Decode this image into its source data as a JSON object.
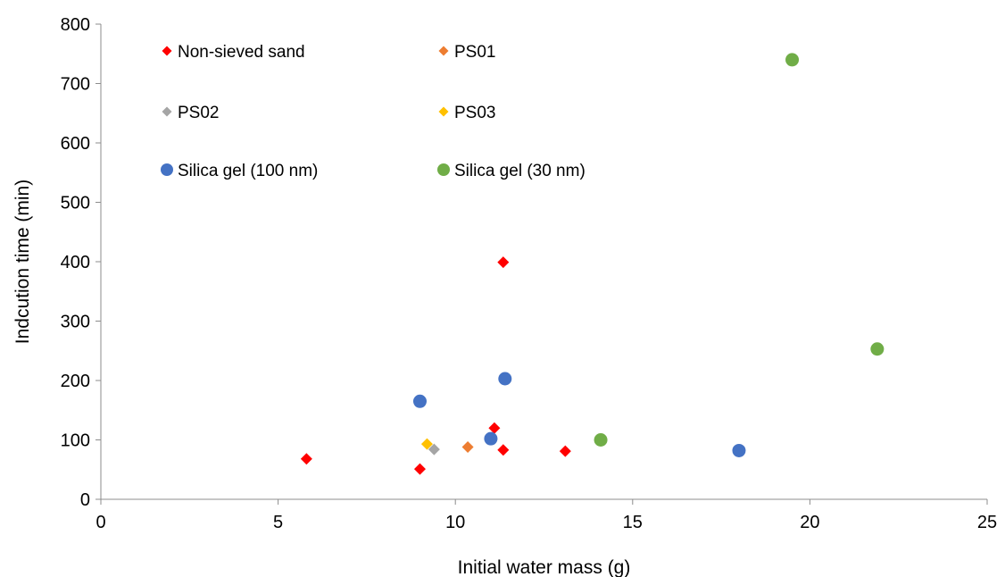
{
  "chart_data": {
    "type": "scatter",
    "title": "",
    "xlabel": "Initial water mass (g)",
    "ylabel": "Indcution time (min)",
    "xlim": [
      0,
      25
    ],
    "ylim": [
      0,
      800
    ],
    "x_ticks": [
      0,
      5,
      10,
      15,
      20,
      25
    ],
    "y_ticks": [
      0,
      100,
      200,
      300,
      400,
      500,
      600,
      700,
      800
    ],
    "grid": false,
    "legend_position": "inside top-left, two columns",
    "series": [
      {
        "name": "Non-sieved sand",
        "marker": "diamond",
        "color": "#FF0000",
        "points": [
          [
            5.8,
            68
          ],
          [
            9.0,
            51
          ],
          [
            11.1,
            120
          ],
          [
            11.35,
            399
          ],
          [
            11.35,
            83
          ],
          [
            13.1,
            81
          ]
        ]
      },
      {
        "name": "PS01",
        "marker": "diamond",
        "color": "#ED7D31",
        "points": [
          [
            10.35,
            88
          ]
        ]
      },
      {
        "name": "PS02",
        "marker": "diamond",
        "color": "#A5A5A5",
        "points": [
          [
            9.4,
            84
          ]
        ]
      },
      {
        "name": "PS03",
        "marker": "diamond",
        "color": "#FFC000",
        "points": [
          [
            9.2,
            93
          ]
        ]
      },
      {
        "name": "Silica gel (100 nm)",
        "marker": "circle",
        "color": "#4472C4",
        "points": [
          [
            9.0,
            165
          ],
          [
            11.4,
            203
          ],
          [
            11.0,
            102
          ],
          [
            18.0,
            82
          ]
        ]
      },
      {
        "name": "Silica gel (30 nm)",
        "marker": "circle",
        "color": "#70AD47",
        "points": [
          [
            19.5,
            740
          ],
          [
            14.1,
            100
          ],
          [
            21.9,
            253
          ]
        ]
      }
    ]
  }
}
